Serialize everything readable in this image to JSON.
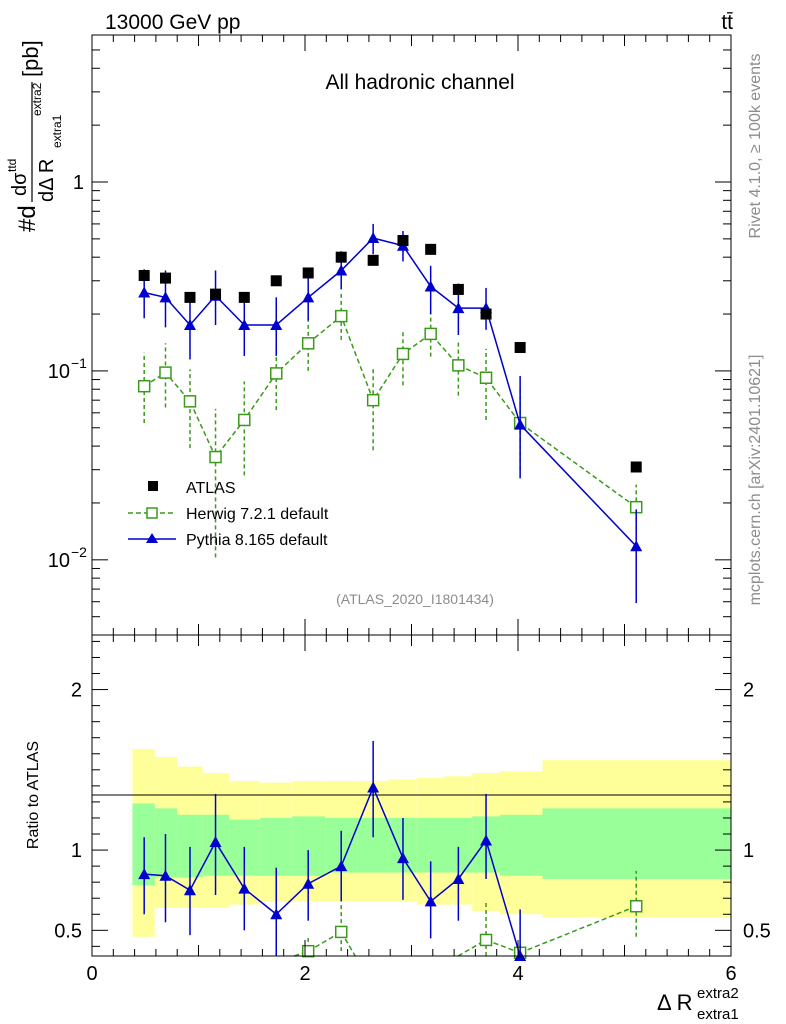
{
  "header": {
    "left": "13000 GeV pp",
    "right": "tt̄"
  },
  "side_labels": {
    "rivet": "Rivet 4.1.0, ≥ 100k events",
    "mcplots": "mcplots.cern.ch [arXiv:2401.10621]"
  },
  "chart_data": [
    {
      "type": "scatter",
      "panel": "main",
      "title": "All hadronic channel",
      "watermark": "(ATLAS_2020_I1801434)",
      "ylabel": "#d dσ^ttd / dΔ R^extra2_extra1 [pb]",
      "ylabel_parts": {
        "prefix": "#d",
        "num": "dσ",
        "num_sup": "ttd",
        "den": "dΔ R",
        "den_sub": "extra1",
        "den_sup": "extra2",
        "unit": "[pb]"
      },
      "yscale": "log",
      "xlim": [
        0,
        6
      ],
      "ylim": [
        0.004,
        6
      ],
      "y_ticks": [
        {
          "v": 1,
          "label": "1"
        },
        {
          "v": 0.1,
          "label": "10",
          "exp": "−1"
        },
        {
          "v": 0.01,
          "label": "10",
          "exp": "−2"
        }
      ],
      "legend": [
        "ATLAS",
        "Herwig 7.2.1 default",
        "Pythia 8.165 default"
      ],
      "series": [
        {
          "name": "ATLAS",
          "color": "#000000",
          "x": [
            0.49,
            0.69,
            0.92,
            1.16,
            1.43,
            1.73,
            2.03,
            2.34,
            2.64,
            2.92,
            3.18,
            3.44,
            3.7,
            4.02,
            5.11
          ],
          "y": [
            0.32,
            0.31,
            0.245,
            0.255,
            0.245,
            0.3,
            0.33,
            0.4,
            0.385,
            0.49,
            0.44,
            0.27,
            0.2,
            0.133,
            0.031
          ]
        },
        {
          "name": "Herwig 7.2.1 default",
          "color": "#3a9a1a",
          "x": [
            0.49,
            0.69,
            0.92,
            1.16,
            1.43,
            1.73,
            2.03,
            2.34,
            2.64,
            2.92,
            3.18,
            3.44,
            3.7,
            4.02,
            5.11
          ],
          "y": [
            0.083,
            0.098,
            0.069,
            0.035,
            0.055,
            0.097,
            0.14,
            0.195,
            0.07,
            0.123,
            0.157,
            0.107,
            0.092,
            0.053,
            0.019
          ],
          "err_lo": [
            0.082,
            0.097,
            0.068,
            0.035,
            0.054,
            0.096,
            0.14,
            0.194,
            0.069,
            0.122,
            0.156,
            0.106,
            0.091,
            0.052,
            0.019
          ],
          "err_lo_y": [
            0.053,
            0.064,
            0.039,
            0.0103,
            0.028,
            0.062,
            0.1,
            0.146,
            0.038,
            0.084,
            0.119,
            0.074,
            0.055,
            0.03,
            0.0145
          ],
          "err_hi_y": [
            0.125,
            0.14,
            0.102,
            0.063,
            0.088,
            0.138,
            0.19,
            0.26,
            0.103,
            0.165,
            0.205,
            0.145,
            0.131,
            0.081,
            0.025
          ]
        },
        {
          "name": "Pythia 8.165 default",
          "color": "#0000cc",
          "x": [
            0.49,
            0.69,
            0.92,
            1.16,
            1.43,
            1.73,
            2.03,
            2.34,
            2.64,
            2.92,
            3.18,
            3.44,
            3.7,
            4.02,
            5.11
          ],
          "y": [
            0.26,
            0.245,
            0.175,
            0.25,
            0.175,
            0.175,
            0.245,
            0.34,
            0.505,
            0.46,
            0.28,
            0.215,
            0.215,
            0.052,
            0.0118
          ],
          "err_lo_y": [
            0.19,
            0.17,
            0.115,
            0.175,
            0.12,
            0.12,
            0.185,
            0.27,
            0.415,
            0.38,
            0.2,
            0.155,
            0.165,
            0.027,
            0.0059
          ],
          "err_hi_y": [
            0.345,
            0.34,
            0.25,
            0.34,
            0.245,
            0.245,
            0.32,
            0.43,
            0.6,
            0.55,
            0.36,
            0.29,
            0.275,
            0.094,
            0.0185
          ]
        }
      ]
    },
    {
      "type": "scatter",
      "panel": "ratio",
      "ylabel": "Ratio to ATLAS",
      "xlabel": "Δ R",
      "xlabel_sub": "extra1",
      "xlabel_sup": "extra2",
      "xlim": [
        0,
        6
      ],
      "ylim": [
        0.34,
        2.34
      ],
      "x_ticks": [
        0,
        2,
        4,
        6
      ],
      "y_ticks": [
        0.5,
        1,
        2
      ],
      "bands": {
        "edges": [
          0.38,
          0.59,
          0.8,
          1.04,
          1.29,
          1.58,
          1.88,
          2.19,
          2.49,
          2.78,
          3.05,
          3.31,
          3.57,
          3.83,
          4.23,
          6.0
        ],
        "green_lo": [
          0.78,
          0.83,
          0.83,
          0.84,
          0.84,
          0.84,
          0.84,
          0.86,
          0.86,
          0.86,
          0.86,
          0.86,
          0.86,
          0.84,
          0.82
        ],
        "green_hi": [
          1.29,
          1.26,
          1.22,
          1.22,
          1.19,
          1.2,
          1.21,
          1.2,
          1.2,
          1.2,
          1.2,
          1.2,
          1.21,
          1.22,
          1.26
        ],
        "yellow_lo": [
          0.46,
          0.64,
          0.64,
          0.64,
          0.66,
          0.68,
          0.68,
          0.68,
          0.68,
          0.68,
          0.66,
          0.66,
          0.62,
          0.6,
          0.58
        ],
        "yellow_hi": [
          1.63,
          1.58,
          1.52,
          1.48,
          1.43,
          1.42,
          1.43,
          1.43,
          1.43,
          1.44,
          1.45,
          1.46,
          1.48,
          1.49,
          1.56
        ],
        "green_color": "#99ff99",
        "yellow_color": "#ffff99"
      },
      "series": [
        {
          "name": "Herwig 7.2.1 default",
          "color": "#3a9a1a",
          "x": [
            2.03,
            2.34,
            3.7,
            4.02,
            5.11
          ],
          "y": [
            0.37,
            0.49,
            0.44,
            0.36,
            0.65
          ],
          "err_lo_y": [
            0.3,
            0.37,
            0.3,
            0.3,
            0.46
          ],
          "err_hi_y": [
            0.46,
            0.66,
            0.68,
            0.42,
            0.87
          ]
        },
        {
          "name": "Pythia 8.165 default",
          "color": "#0000cc",
          "x": [
            0.49,
            0.69,
            0.92,
            1.16,
            1.43,
            1.73,
            2.03,
            2.34,
            2.64,
            2.92,
            3.18,
            3.44,
            3.7,
            4.02
          ],
          "y": [
            0.85,
            0.84,
            0.75,
            1.05,
            0.76,
            0.6,
            0.79,
            0.9,
            1.39,
            0.95,
            0.68,
            0.82,
            1.06,
            0.34
          ],
          "err_lo_y": [
            0.6,
            0.55,
            0.47,
            0.72,
            0.5,
            0.33,
            0.56,
            0.68,
            1.08,
            0.69,
            0.45,
            0.56,
            0.82,
            0.2
          ],
          "err_hi_y": [
            1.08,
            1.1,
            1.02,
            1.35,
            1.02,
            0.89,
            1.0,
            1.12,
            1.68,
            1.2,
            0.93,
            1.02,
            1.35,
            0.63
          ]
        }
      ]
    }
  ]
}
